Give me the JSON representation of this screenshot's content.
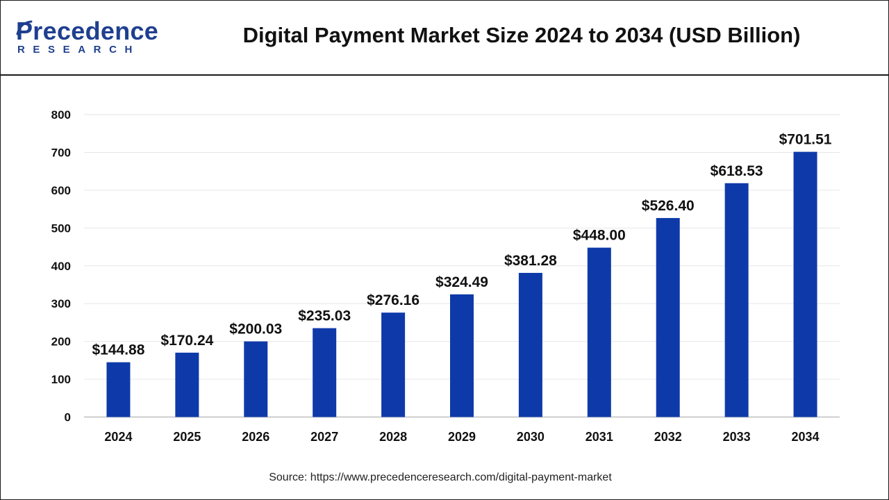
{
  "brand": {
    "logo_word": "Precedence",
    "logo_sub": "RESEARCH",
    "color": "#1f3f8f"
  },
  "header": {
    "title": "Digital Payment Market Size 2024 to 2034 (USD Billion)"
  },
  "chart_data": {
    "type": "bar",
    "title": "Digital Payment Market Size 2024 to 2034 (USD Billion)",
    "xlabel": "",
    "ylabel": "",
    "categories": [
      "2024",
      "2025",
      "2026",
      "2027",
      "2028",
      "2029",
      "2030",
      "2031",
      "2032",
      "2033",
      "2034"
    ],
    "values": [
      144.88,
      170.24,
      200.03,
      235.03,
      276.16,
      324.49,
      381.28,
      448.0,
      526.4,
      618.53,
      701.51
    ],
    "value_labels": [
      "$144.88",
      "$170.24",
      "$200.03",
      "$235.03",
      "$276.16",
      "$324.49",
      "$381.28",
      "$448.00",
      "$526.40",
      "$618.53",
      "$701.51"
    ],
    "ylim": [
      0,
      800
    ],
    "yticks": [
      0,
      100,
      200,
      300,
      400,
      500,
      600,
      700,
      800
    ],
    "grid": true,
    "bar_color": "#0e3aa9"
  },
  "footer": {
    "source": "Source: https://www.precedenceresearch.com/digital-payment-market"
  }
}
